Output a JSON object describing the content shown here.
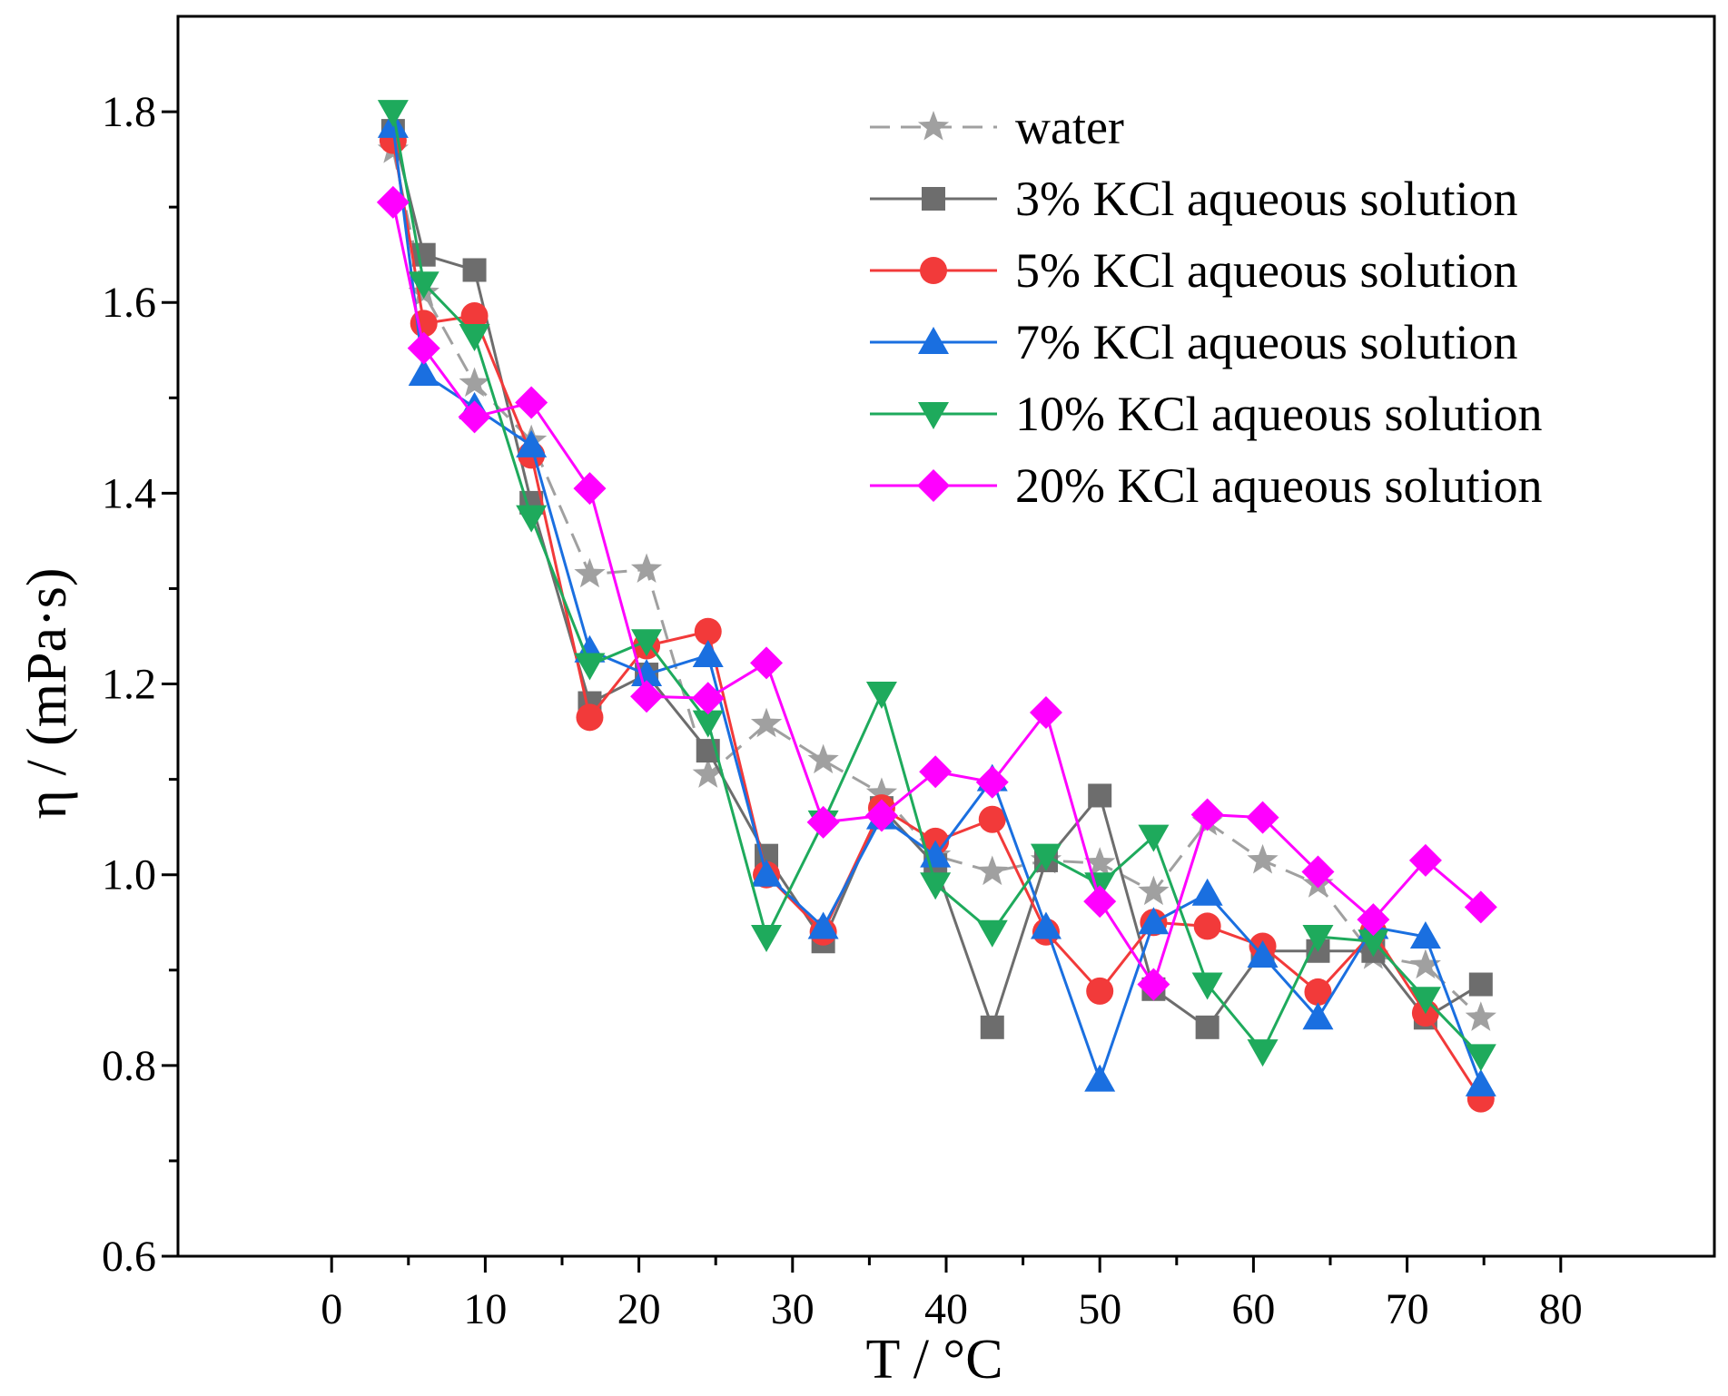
{
  "chart_data": {
    "type": "line",
    "title": "",
    "xlabel": "T / °C",
    "ylabel": "η / (mPa·s)",
    "xlim": [
      -10,
      90
    ],
    "ylim": [
      0.6,
      1.9
    ],
    "xticks": [
      0,
      10,
      20,
      30,
      40,
      50,
      60,
      70,
      80
    ],
    "xtick_labels": [
      "0",
      "10",
      "20",
      "30",
      "40",
      "50",
      "60",
      "70",
      "80"
    ],
    "yticks": [
      0.6,
      0.8,
      1.0,
      1.2,
      1.4,
      1.6,
      1.8
    ],
    "ytick_labels": [
      "0.6",
      "0.8",
      "1.0",
      "1.2",
      "1.4",
      "1.6",
      "1.8"
    ],
    "grid": false,
    "legend_position": "top-right",
    "x": [
      4,
      6,
      9.3,
      13,
      16.8,
      20.5,
      24.5,
      28.3,
      32,
      35.8,
      39.3,
      43,
      46.5,
      50,
      53.5,
      57,
      60.6,
      64.2,
      67.8,
      71.2,
      74.8
    ],
    "series": [
      {
        "name": "water",
        "color": "#a0a0a0",
        "marker": "star",
        "dashed": true,
        "values": [
          1.76,
          1.61,
          1.515,
          1.455,
          1.315,
          1.32,
          1.105,
          1.158,
          1.12,
          1.085,
          1.02,
          1.003,
          1.015,
          1.012,
          0.982,
          1.055,
          1.015,
          0.99,
          0.915,
          0.905,
          0.85
        ]
      },
      {
        "name": "3% KCl aqueous solution",
        "color": "#6d6d6d",
        "marker": "square",
        "dashed": false,
        "values": [
          1.78,
          1.65,
          1.634,
          1.39,
          1.18,
          1.21,
          1.13,
          1.02,
          0.93,
          1.07,
          1.01,
          0.84,
          1.015,
          1.083,
          0.88,
          0.84,
          0.92,
          0.92,
          0.92,
          0.85,
          0.885
        ]
      },
      {
        "name": "5% KCl aqueous solution",
        "color": "#f23a3a",
        "marker": "circle",
        "dashed": false,
        "values": [
          1.77,
          1.578,
          1.586,
          1.44,
          1.165,
          1.24,
          1.255,
          1.0,
          0.94,
          1.07,
          1.035,
          1.058,
          0.94,
          0.878,
          0.95,
          0.946,
          0.925,
          0.877,
          0.94,
          0.855,
          0.765
        ]
      },
      {
        "name": "7% KCl aqueous solution",
        "color": "#1a6fe0",
        "marker": "triangle-up",
        "dashed": false,
        "values": [
          1.785,
          1.525,
          1.49,
          1.45,
          1.235,
          1.21,
          1.23,
          1.0,
          0.945,
          1.06,
          1.02,
          1.1,
          0.945,
          0.785,
          0.95,
          0.98,
          0.915,
          0.85,
          0.945,
          0.935,
          0.78
        ]
      },
      {
        "name": "10% KCl aqueous solution",
        "color": "#1eaa5c",
        "marker": "triangle-down",
        "dashed": false,
        "values": [
          1.8,
          1.62,
          1.565,
          1.375,
          1.22,
          1.245,
          1.16,
          0.935,
          1.055,
          1.19,
          0.99,
          0.94,
          1.02,
          0.99,
          1.04,
          0.885,
          0.815,
          0.935,
          0.93,
          0.87,
          0.81
        ]
      },
      {
        "name": "20% KCl aqueous solution",
        "color": "#ff00ff",
        "marker": "diamond",
        "dashed": false,
        "values": [
          1.705,
          1.552,
          1.48,
          1.495,
          1.405,
          1.187,
          1.185,
          1.222,
          1.055,
          1.062,
          1.108,
          1.097,
          1.17,
          0.972,
          0.885,
          1.063,
          1.06,
          1.003,
          0.953,
          1.015,
          0.966
        ]
      }
    ]
  }
}
